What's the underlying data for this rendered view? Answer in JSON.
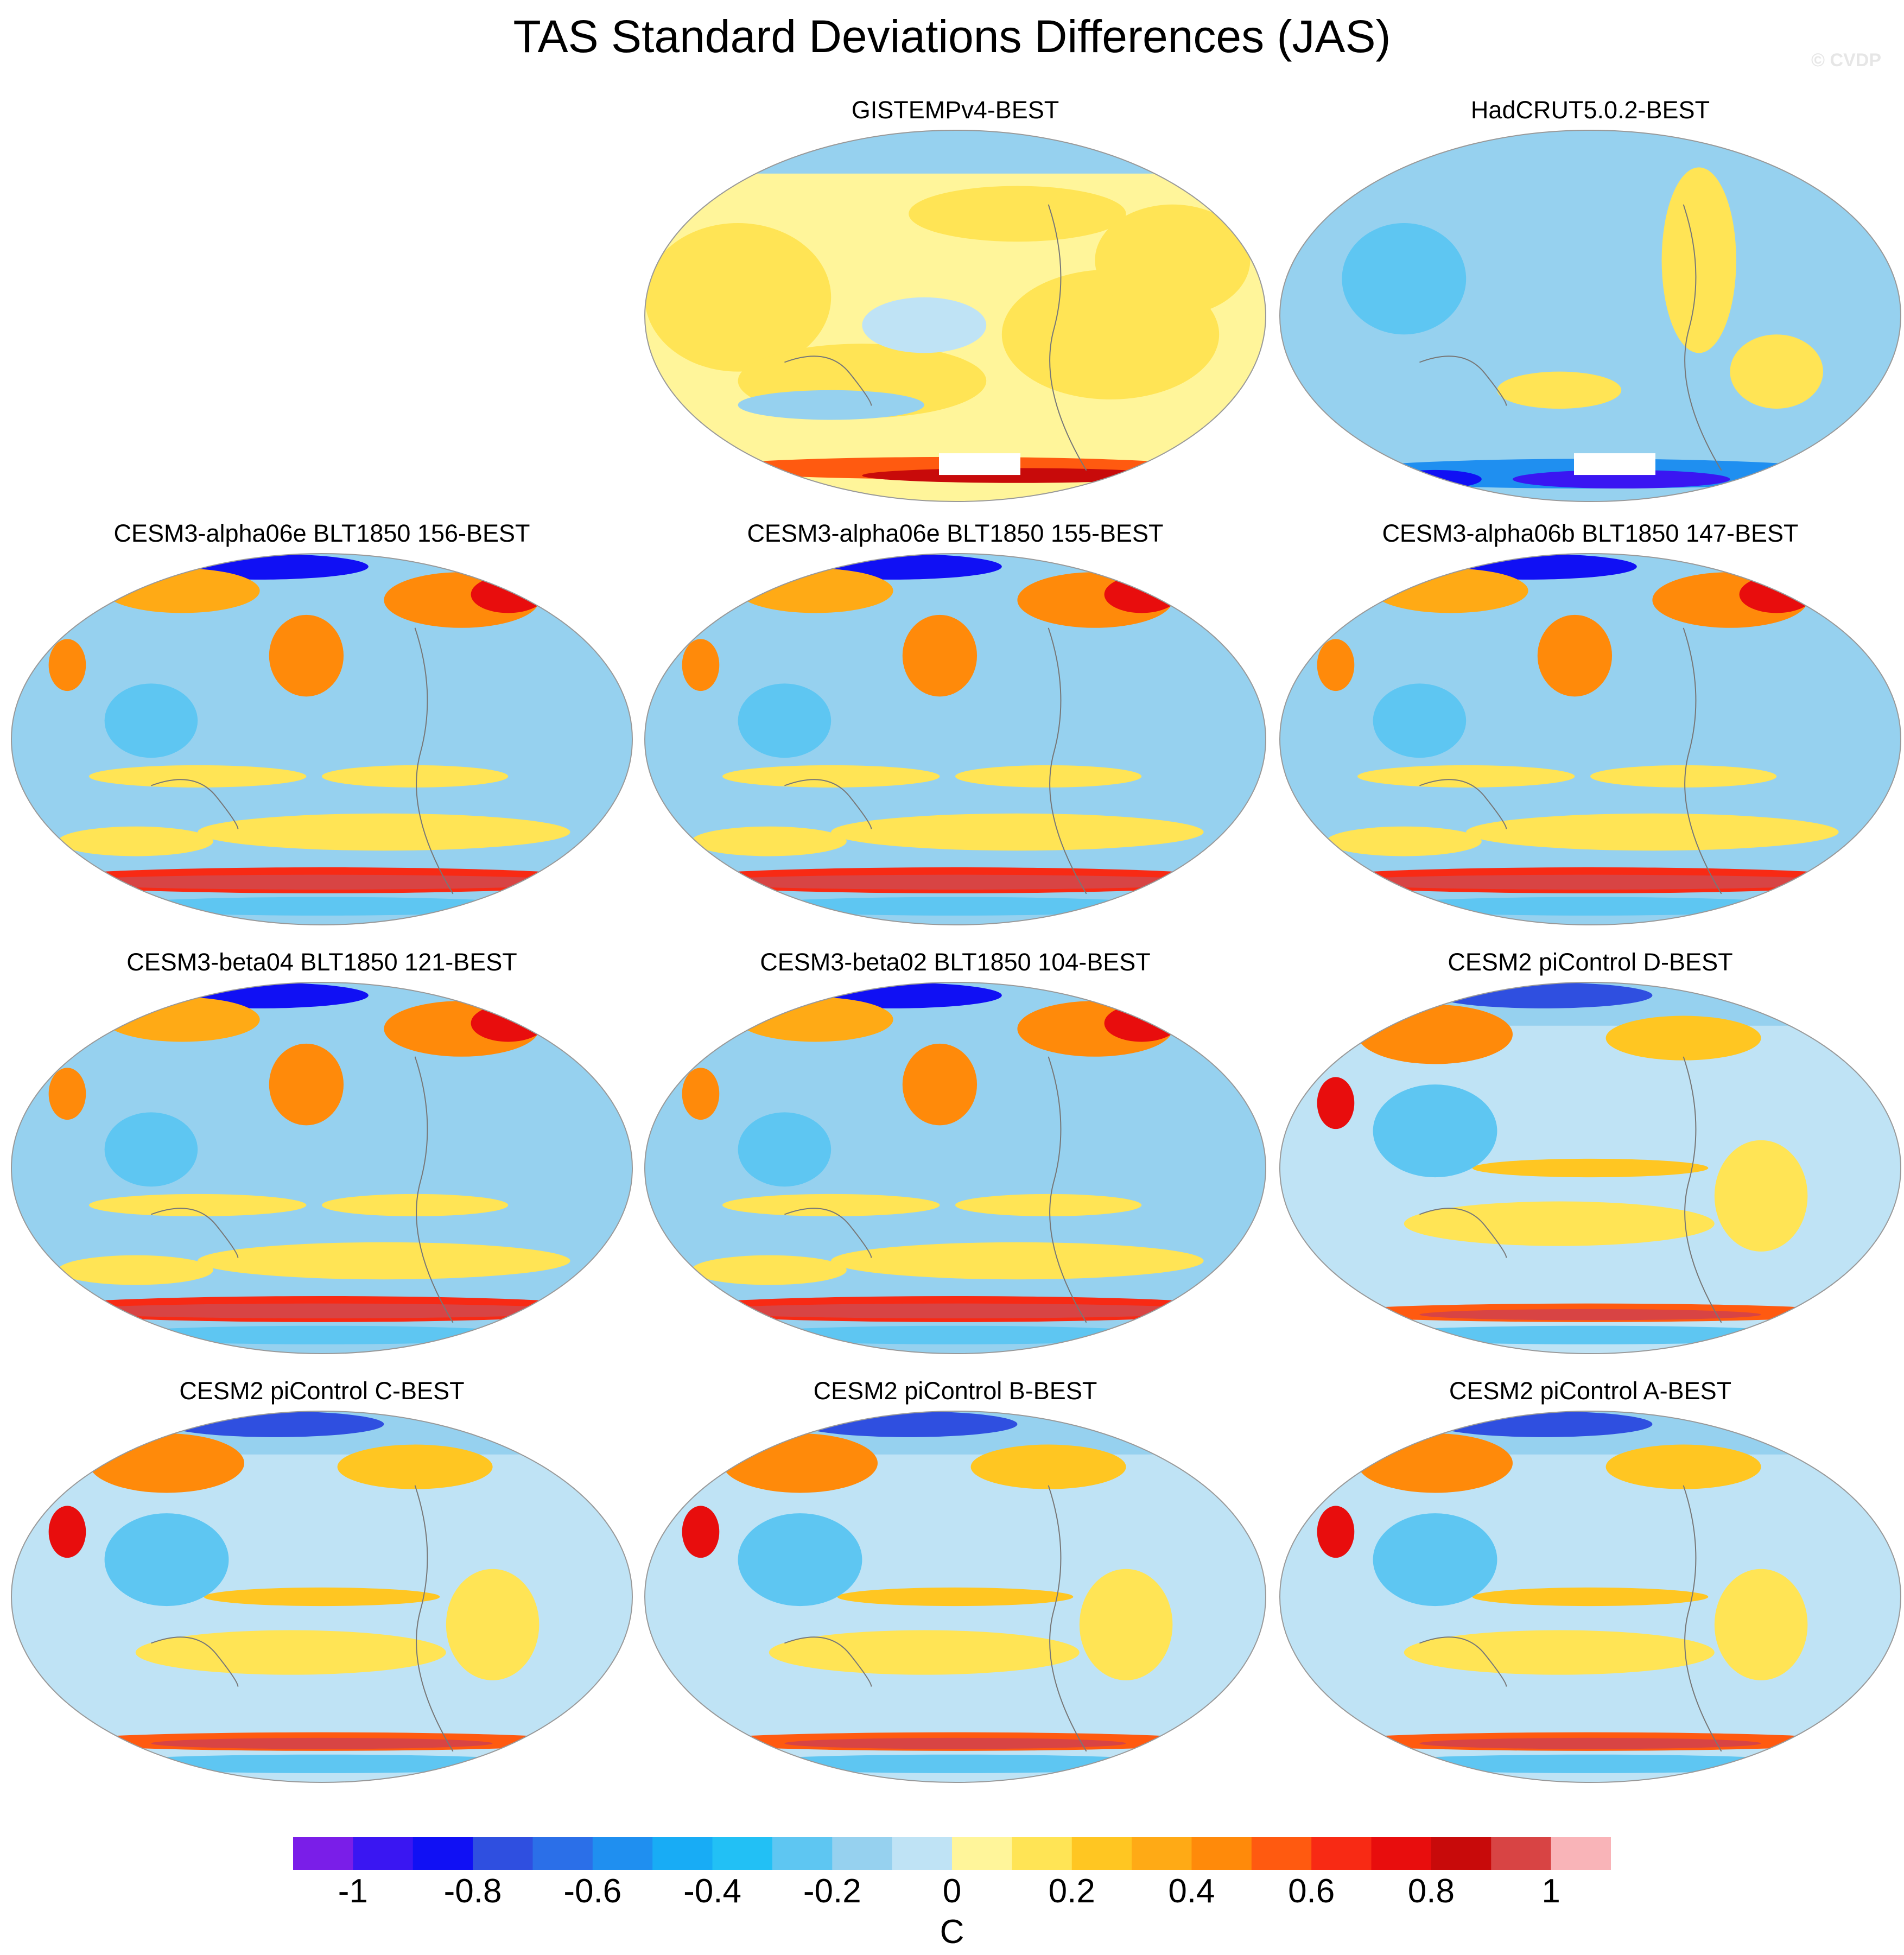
{
  "title": "TAS Standard Deviations Differences (JAS)",
  "watermark": "© CVDP",
  "chart_data": {
    "type": "heatmap",
    "title": "TAS Standard Deviations Differences (JAS)",
    "projection": "global map",
    "colorbar": {
      "label": "C",
      "levels": [
        -1.1,
        -1.0,
        -0.9,
        -0.8,
        -0.7,
        -0.6,
        -0.5,
        -0.4,
        -0.3,
        -0.2,
        -0.1,
        0,
        0.1,
        0.2,
        0.3,
        0.4,
        0.5,
        0.6,
        0.7,
        0.8,
        0.9,
        1.0,
        1.1
      ],
      "tick_values": [
        -1,
        -0.8,
        -0.6,
        -0.4,
        -0.2,
        0,
        0.2,
        0.4,
        0.6,
        0.8,
        1
      ],
      "tick_labels": [
        "-1",
        "-0.8",
        "-0.6",
        "-0.4",
        "-0.2",
        "0",
        "0.2",
        "0.4",
        "0.6",
        "0.8",
        "1"
      ],
      "colors": [
        "#7a1ee8",
        "#3a16f2",
        "#1010f4",
        "#2f4fe0",
        "#2b6fe8",
        "#1f8ff0",
        "#18acf5",
        "#22c0f5",
        "#5ec6f2",
        "#96d1ef",
        "#bfe3f5",
        "#fff59a",
        "#ffe455",
        "#ffc622",
        "#ffaa15",
        "#ff8a0a",
        "#ff5a10",
        "#f82a14",
        "#e80d0d",
        "#c80a0a",
        "#d84444",
        "#f9b4b8"
      ]
    },
    "panels": [
      {
        "label": "GISTEMPv4-BEST",
        "pattern": "obs-warm"
      },
      {
        "label": "HadCRUT5.0.2-BEST",
        "pattern": "obs-cool"
      },
      {
        "label": "CESM3-alpha06e BLT1850 156-BEST",
        "pattern": "model"
      },
      {
        "label": "CESM3-alpha06e BLT1850 155-BEST",
        "pattern": "model"
      },
      {
        "label": "CESM3-alpha06b BLT1850 147-BEST",
        "pattern": "model"
      },
      {
        "label": "CESM3-beta04 BLT1850 121-BEST",
        "pattern": "model"
      },
      {
        "label": "CESM3-beta02 BLT1850 104-BEST",
        "pattern": "model"
      },
      {
        "label": "CESM2 piControl D-BEST",
        "pattern": "cesm2"
      },
      {
        "label": "CESM2 piControl C-BEST",
        "pattern": "cesm2"
      },
      {
        "label": "CESM2 piControl B-BEST",
        "pattern": "cesm2"
      },
      {
        "label": "CESM2 piControl A-BEST",
        "pattern": "cesm2"
      }
    ]
  }
}
